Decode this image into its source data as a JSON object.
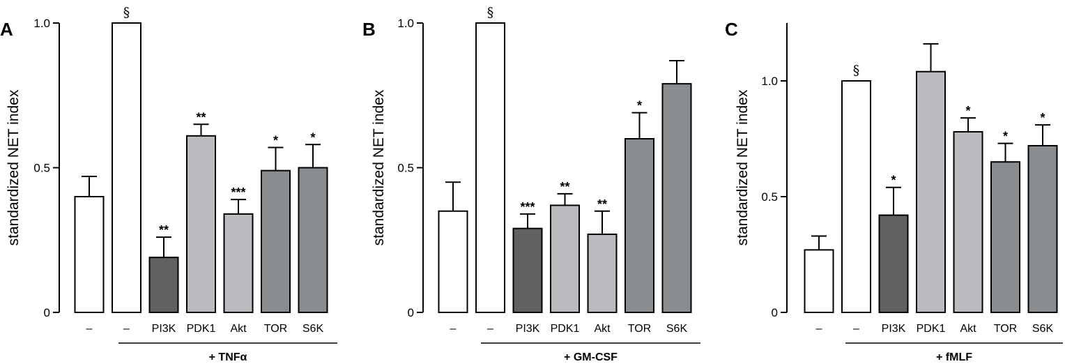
{
  "chart_data": [
    {
      "type": "bar",
      "panel": "A",
      "ylabel": "standardized NET index",
      "ylim": [
        0,
        1.0
      ],
      "yticks": [
        0,
        0.5,
        1.0
      ],
      "ytick_labels": [
        "0",
        "0.5",
        "1.0"
      ],
      "categories": [
        "–",
        "–",
        "PI3K",
        "PDK1",
        "Akt",
        "TOR",
        "S6K"
      ],
      "values": [
        0.4,
        1.0,
        0.19,
        0.61,
        0.34,
        0.49,
        0.5
      ],
      "errors": [
        0.07,
        0.0,
        0.07,
        0.04,
        0.05,
        0.08,
        0.08
      ],
      "colors": [
        "#ffffff",
        "#ffffff",
        "#5f6163",
        "#babcbf",
        "#babcbf",
        "#8a8d90",
        "#8a8d90"
      ],
      "significance": [
        "",
        "§",
        "**",
        "**",
        "***",
        "*",
        "*"
      ],
      "group_label": "+ TNFα",
      "grid": false,
      "legend": "none"
    },
    {
      "type": "bar",
      "panel": "B",
      "ylabel": "standardized NET index",
      "ylim": [
        0,
        1.0
      ],
      "yticks": [
        0,
        0.5,
        1.0
      ],
      "ytick_labels": [
        "0",
        "0.5",
        "1.0"
      ],
      "categories": [
        "–",
        "–",
        "PI3K",
        "PDK1",
        "Akt",
        "TOR",
        "S6K"
      ],
      "values": [
        0.35,
        1.0,
        0.29,
        0.37,
        0.27,
        0.6,
        0.79
      ],
      "errors": [
        0.1,
        0.0,
        0.05,
        0.04,
        0.08,
        0.09,
        0.08
      ],
      "colors": [
        "#ffffff",
        "#ffffff",
        "#5f6163",
        "#babcbf",
        "#babcbf",
        "#8a8d90",
        "#8a8d90"
      ],
      "significance": [
        "",
        "§",
        "***",
        "**",
        "**",
        "*",
        ""
      ],
      "group_label": "+ GM-CSF",
      "grid": false,
      "legend": "none"
    },
    {
      "type": "bar",
      "panel": "C",
      "ylabel": "standardized NET index",
      "ylim": [
        0,
        1.25
      ],
      "yticks": [
        0,
        0.5,
        1.0
      ],
      "ytick_labels": [
        "0",
        "0.5",
        "1.0"
      ],
      "categories": [
        "–",
        "–",
        "PI3K",
        "PDK1",
        "Akt",
        "TOR",
        "S6K"
      ],
      "values": [
        0.27,
        1.0,
        0.42,
        1.04,
        0.78,
        0.65,
        0.72
      ],
      "errors": [
        0.06,
        0.0,
        0.12,
        0.12,
        0.06,
        0.08,
        0.09
      ],
      "colors": [
        "#ffffff",
        "#ffffff",
        "#5f6163",
        "#babcbf",
        "#babcbf",
        "#8a8d90",
        "#8a8d90"
      ],
      "significance": [
        "",
        "§",
        "*",
        "",
        "*",
        "*",
        "*"
      ],
      "group_label": "+ fMLF",
      "grid": false,
      "legend": "none"
    }
  ]
}
